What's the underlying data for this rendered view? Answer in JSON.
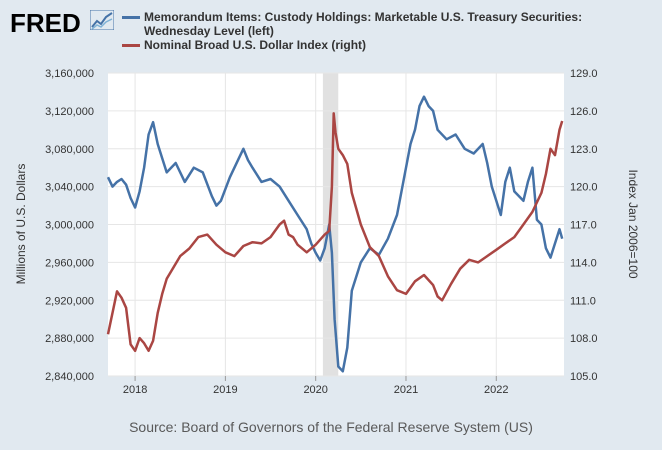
{
  "logo": {
    "text": "FRED",
    "icon": "trend-chart-icon"
  },
  "source": "Source: Board of Governors of the Federal Reserve System (US)",
  "chart_data": {
    "type": "line",
    "x_tick_labels": [
      "2018",
      "2019",
      "2020",
      "2021",
      "2022"
    ],
    "x_ticks": [
      2018,
      2019,
      2020,
      2021,
      2022
    ],
    "xlim": [
      2017.7,
      2022.75
    ],
    "recession_shading": [
      2020.08,
      2020.25
    ],
    "grid": true,
    "legend_position": "top",
    "ylabel_left": "Millions of U.S. Dollars",
    "ylabel_right": "Index Jan 2006=100",
    "left_axis": {
      "ylim": [
        2840000,
        3160000
      ],
      "tick_labels": [
        "2,840,000",
        "2,880,000",
        "2,920,000",
        "2,960,000",
        "3,000,000",
        "3,040,000",
        "3,080,000",
        "3,120,000",
        "3,160,000"
      ],
      "ticks": [
        2840000,
        2880000,
        2920000,
        2960000,
        3000000,
        3040000,
        3080000,
        3120000,
        3160000
      ]
    },
    "right_axis": {
      "ylim": [
        105.0,
        129.0
      ],
      "tick_labels": [
        "105.0",
        "108.0",
        "111.0",
        "114.0",
        "117.0",
        "120.0",
        "123.0",
        "126.0",
        "129.0"
      ],
      "ticks": [
        105,
        108,
        111,
        114,
        117,
        120,
        123,
        126,
        129
      ]
    },
    "series": [
      {
        "name": "Memorandum Items: Custody Holdings: Marketable U.S. Treasury Securities: Wednesday Level (left)",
        "legend_lines": [
          "Memorandum Items: Custody Holdings: Marketable U.S. Treasury Securities:",
          "Wednesday Level (left)"
        ],
        "axis": "left",
        "color": "#4572a7",
        "x": [
          2017.7,
          2017.75,
          2017.8,
          2017.85,
          2017.9,
          2017.95,
          2018.0,
          2018.05,
          2018.1,
          2018.15,
          2018.2,
          2018.25,
          2018.3,
          2018.35,
          2018.45,
          2018.55,
          2018.65,
          2018.75,
          2018.85,
          2018.9,
          2018.95,
          2019.05,
          2019.15,
          2019.2,
          2019.25,
          2019.3,
          2019.4,
          2019.5,
          2019.6,
          2019.7,
          2019.8,
          2019.9,
          2019.95,
          2020.0,
          2020.05,
          2020.1,
          2020.15,
          2020.18,
          2020.21,
          2020.25,
          2020.3,
          2020.35,
          2020.4,
          2020.5,
          2020.6,
          2020.7,
          2020.8,
          2020.9,
          2021.0,
          2021.05,
          2021.1,
          2021.15,
          2021.2,
          2021.25,
          2021.3,
          2021.35,
          2021.45,
          2021.55,
          2021.65,
          2021.75,
          2021.85,
          2021.9,
          2021.95,
          2022.0,
          2022.05,
          2022.1,
          2022.15,
          2022.2,
          2022.3,
          2022.35,
          2022.4,
          2022.45,
          2022.5,
          2022.55,
          2022.6,
          2022.65,
          2022.7,
          2022.73
        ],
        "values": [
          3050000,
          3040000,
          3045000,
          3048000,
          3042000,
          3028000,
          3018000,
          3035000,
          3060000,
          3095000,
          3108000,
          3085000,
          3070000,
          3055000,
          3065000,
          3045000,
          3060000,
          3055000,
          3030000,
          3020000,
          3025000,
          3050000,
          3070000,
          3080000,
          3068000,
          3060000,
          3045000,
          3048000,
          3040000,
          3025000,
          3010000,
          2995000,
          2980000,
          2970000,
          2962000,
          2975000,
          3000000,
          2970000,
          2900000,
          2850000,
          2845000,
          2870000,
          2930000,
          2960000,
          2975000,
          2968000,
          2985000,
          3010000,
          3060000,
          3085000,
          3100000,
          3125000,
          3135000,
          3125000,
          3120000,
          3100000,
          3090000,
          3095000,
          3080000,
          3075000,
          3085000,
          3065000,
          3040000,
          3025000,
          3010000,
          3045000,
          3060000,
          3035000,
          3025000,
          3045000,
          3060000,
          3005000,
          3000000,
          2975000,
          2965000,
          2980000,
          2995000,
          2985000
        ]
      },
      {
        "name": "Nominal Broad U.S. Dollar Index (right)",
        "legend_lines": [
          "Nominal Broad U.S. Dollar Index (right)"
        ],
        "axis": "right",
        "color": "#aa4643",
        "x": [
          2017.7,
          2017.75,
          2017.8,
          2017.85,
          2017.9,
          2017.95,
          2018.0,
          2018.05,
          2018.1,
          2018.15,
          2018.2,
          2018.25,
          2018.3,
          2018.35,
          2018.4,
          2018.5,
          2018.6,
          2018.7,
          2018.8,
          2018.9,
          2019.0,
          2019.1,
          2019.2,
          2019.3,
          2019.4,
          2019.5,
          2019.6,
          2019.65,
          2019.7,
          2019.75,
          2019.8,
          2019.9,
          2020.0,
          2020.1,
          2020.15,
          2020.18,
          2020.2,
          2020.22,
          2020.25,
          2020.3,
          2020.35,
          2020.4,
          2020.5,
          2020.6,
          2020.7,
          2020.8,
          2020.9,
          2021.0,
          2021.1,
          2021.2,
          2021.3,
          2021.35,
          2021.4,
          2021.5,
          2021.6,
          2021.7,
          2021.8,
          2021.9,
          2022.0,
          2022.1,
          2022.2,
          2022.3,
          2022.4,
          2022.5,
          2022.55,
          2022.6,
          2022.65,
          2022.7,
          2022.73
        ],
        "values": [
          108.3,
          110.0,
          111.7,
          111.2,
          110.4,
          107.5,
          107.0,
          108.0,
          107.6,
          107.0,
          107.8,
          110.0,
          111.5,
          112.7,
          113.3,
          114.5,
          115.1,
          116.0,
          116.2,
          115.4,
          114.8,
          114.5,
          115.3,
          115.6,
          115.5,
          116.0,
          117.0,
          117.3,
          116.2,
          116.0,
          115.4,
          114.8,
          115.4,
          116.2,
          116.5,
          120.0,
          125.8,
          124.3,
          123.0,
          122.5,
          121.8,
          119.5,
          117.0,
          115.2,
          114.5,
          112.9,
          111.8,
          111.5,
          112.5,
          113.0,
          112.2,
          111.3,
          111.0,
          112.3,
          113.5,
          114.2,
          114.0,
          114.5,
          115.0,
          115.5,
          116.0,
          117.0,
          118.0,
          119.5,
          121.0,
          123.0,
          122.5,
          124.5,
          125.2
        ]
      }
    ]
  }
}
